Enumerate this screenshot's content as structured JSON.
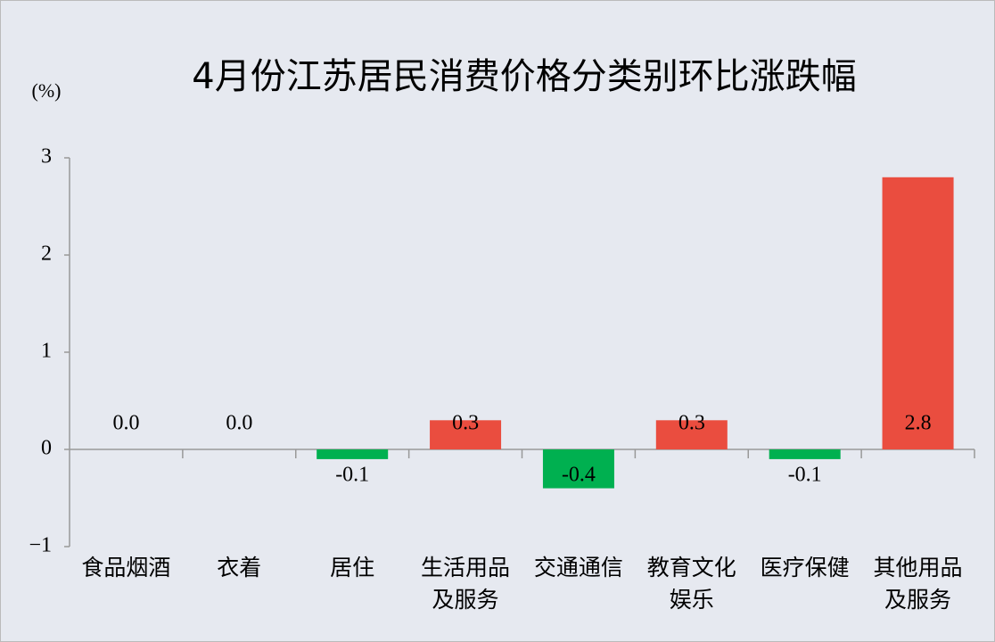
{
  "chart_data": {
    "type": "bar",
    "title": "4月份江苏居民消费价格分类别环比涨跌幅",
    "y_unit": "(%)",
    "categories": [
      "食品烟酒",
      "衣着",
      "居住",
      "生活用品及服务",
      "交通通信",
      "教育文化娱乐",
      "医疗保健",
      "其他用品及服务"
    ],
    "values": [
      0.0,
      0.0,
      -0.1,
      0.3,
      -0.4,
      0.3,
      -0.1,
      2.8
    ],
    "value_labels": [
      "0.0",
      "0.0",
      "-0.1",
      "0.3",
      "-0.4",
      "0.3",
      "-0.1",
      "2.8"
    ],
    "positive_color": "#ea4d3f",
    "negative_color": "#00b050",
    "ylim": [
      -1,
      3
    ],
    "yticks": [
      {
        "value": -1,
        "label": "−1"
      },
      0,
      1,
      2,
      3
    ]
  }
}
